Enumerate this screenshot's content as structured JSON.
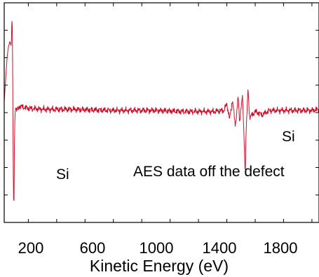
{
  "chart_data": {
    "type": "line",
    "title": "",
    "xlabel": "Kinetic Energy (eV)",
    "ylabel": "",
    "xlim": [
      30,
      2250
    ],
    "ylim": [
      -10,
      10
    ],
    "x_ticks": [
      200,
      600,
      1000,
      1400,
      1800
    ],
    "grid": false,
    "legend": "none",
    "line_color": "#d0102a",
    "annotations": [
      {
        "text": "Si",
        "x": 360,
        "y": -6.5
      },
      {
        "text": "AES data off the defect",
        "x": 1285,
        "y": -6.0
      },
      {
        "text": "Si",
        "x": 1920,
        "y": -3.9
      }
    ],
    "series": [
      {
        "points": [
          [
            30,
            1.0
          ],
          [
            40,
            3.0
          ],
          [
            50,
            5.0
          ],
          [
            60,
            6.0
          ],
          [
            70,
            6.5
          ],
          [
            80,
            6.0
          ],
          [
            86,
            9.5
          ],
          [
            90,
            3.0
          ],
          [
            94,
            -6.0
          ],
          [
            98,
            -9.7
          ],
          [
            102,
            -3.0
          ],
          [
            106,
            0.0
          ],
          [
            112,
            0.5
          ],
          [
            120,
            0.2
          ],
          [
            140,
            0.6
          ],
          [
            160,
            0.5
          ],
          [
            200,
            0.4
          ],
          [
            300,
            0.3
          ],
          [
            500,
            0.3
          ],
          [
            800,
            0.2
          ],
          [
            1100,
            0.2
          ],
          [
            1300,
            0.1
          ],
          [
            1500,
            0.1
          ],
          [
            1580,
            0.2
          ],
          [
            1600,
            0.8
          ],
          [
            1620,
            -0.6
          ],
          [
            1640,
            1.2
          ],
          [
            1660,
            -1.3
          ],
          [
            1680,
            1.5
          ],
          [
            1690,
            -1.0
          ],
          [
            1700,
            0.5
          ],
          [
            1710,
            1.5
          ],
          [
            1720,
            -1.8
          ],
          [
            1730,
            -5.7
          ],
          [
            1735,
            -2.0
          ],
          [
            1745,
            0.8
          ],
          [
            1750,
            2.3
          ],
          [
            1760,
            -0.4
          ],
          [
            1780,
            -0.2
          ],
          [
            1800,
            0.1
          ],
          [
            1850,
            -0.2
          ],
          [
            1900,
            0.2
          ],
          [
            2000,
            0.2
          ],
          [
            2100,
            0.2
          ],
          [
            2200,
            0.2
          ],
          [
            2250,
            0.3
          ]
        ]
      }
    ]
  }
}
